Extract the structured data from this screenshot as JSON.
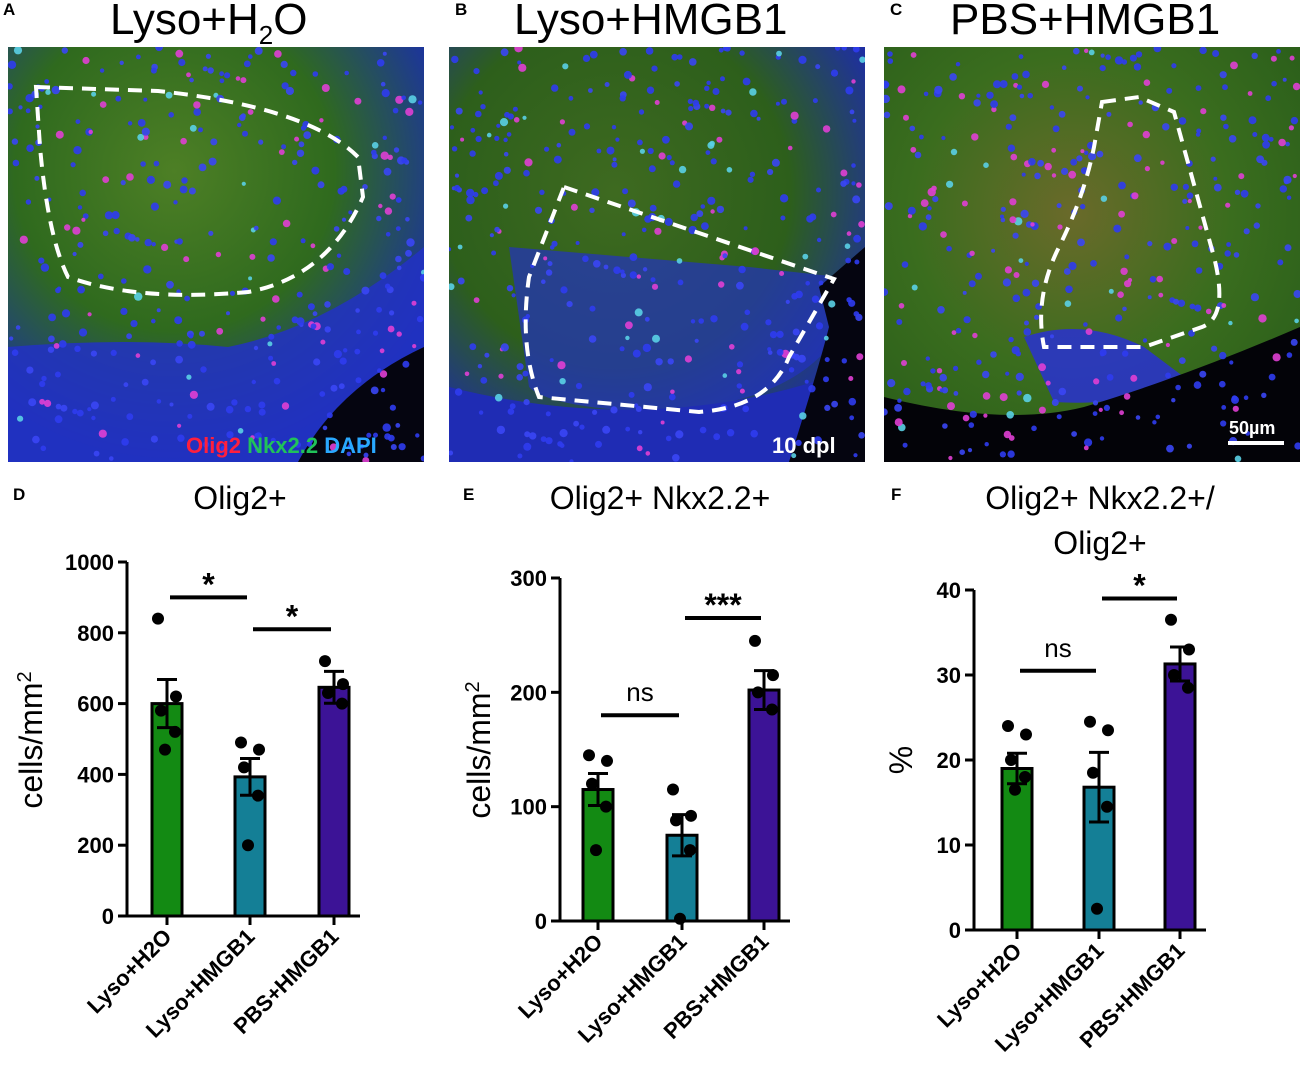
{
  "panels": {
    "a": {
      "letter": "A",
      "title_pre": "Lyso+H",
      "title_sub": "2",
      "title_post": "O"
    },
    "b": {
      "letter": "B",
      "title": "Lyso+HMGB1"
    },
    "c": {
      "letter": "C",
      "title": "PBS+HMGB1"
    },
    "d": {
      "letter": "D"
    },
    "e": {
      "letter": "E"
    },
    "f": {
      "letter": "F"
    }
  },
  "legend": {
    "olig2": "Olig2",
    "nkx": "Nkx2.2",
    "dapi": "DAPI",
    "olig2_color": "#ff1f3d",
    "nkx_color": "#20c25a",
    "dapi_color": "#29a8ff"
  },
  "timepoint": "10 dpl",
  "scalebar": "50µm",
  "colors": {
    "lyso_h2o": "#138a13",
    "lyso_hmgb1": "#147f96",
    "pbs_hmgb1": "#3c1396",
    "tissue_green": "#2e6e1a",
    "nuclei_blue": "#2c3be0"
  },
  "chart_data": [
    {
      "type": "bar",
      "title": "Olig2+",
      "ylabel": "cells/mm",
      "ylabel_sup": "2",
      "categories": [
        "Lyso+H2O",
        "Lyso+HMGB1",
        "PBS+HMGB1"
      ],
      "values": [
        600,
        393,
        646
      ],
      "errors": [
        68,
        52,
        45
      ],
      "points": [
        [
          840,
          620,
          580,
          520,
          470
        ],
        [
          490,
          470,
          420,
          340,
          200
        ],
        [
          720,
          655,
          630,
          600
        ]
      ],
      "ylim": [
        0,
        1000
      ],
      "yticks": [
        0,
        200,
        400,
        600,
        800,
        1000
      ],
      "significance": [
        {
          "from": 0,
          "to": 1,
          "label": "*",
          "y": 900
        },
        {
          "from": 1,
          "to": 2,
          "label": "*",
          "y": 810
        }
      ]
    },
    {
      "type": "bar",
      "title": "Olig2+ Nkx2.2+",
      "ylabel": "cells/mm",
      "ylabel_sup": "2",
      "categories": [
        "Lyso+H2O",
        "Lyso+HMGB1",
        "PBS+HMGB1"
      ],
      "values": [
        115,
        75,
        202
      ],
      "errors": [
        14,
        18,
        17
      ],
      "points": [
        [
          145,
          140,
          120,
          100,
          62
        ],
        [
          115,
          92,
          88,
          62,
          2
        ],
        [
          245,
          215,
          200,
          185
        ]
      ],
      "ylim": [
        0,
        300
      ],
      "yticks": [
        0,
        100,
        200,
        300
      ],
      "significance": [
        {
          "from": 0,
          "to": 1,
          "label": "ns",
          "y": 180
        },
        {
          "from": 1,
          "to": 2,
          "label": "***",
          "y": 265
        }
      ]
    },
    {
      "type": "bar",
      "title": "Olig2+ Nkx2.2+/",
      "title_line2": "Olig2+",
      "ylabel": "%",
      "categories": [
        "Lyso+H2O",
        "Lyso+HMGB1",
        "PBS+HMGB1"
      ],
      "values": [
        19,
        16.8,
        31.3
      ],
      "errors": [
        1.8,
        4.1,
        2.0
      ],
      "points": [
        [
          24,
          23,
          20,
          18,
          16.5
        ],
        [
          24.5,
          23.5,
          18.5,
          14.5,
          2.5
        ],
        [
          36.5,
          33,
          30,
          28.5
        ]
      ],
      "ylim": [
        0,
        40
      ],
      "yticks": [
        0,
        10,
        20,
        30,
        40
      ],
      "significance": [
        {
          "from": 0,
          "to": 1,
          "label": "ns",
          "y": 30.5
        },
        {
          "from": 1,
          "to": 2,
          "label": "*",
          "y": 39
        }
      ]
    }
  ]
}
